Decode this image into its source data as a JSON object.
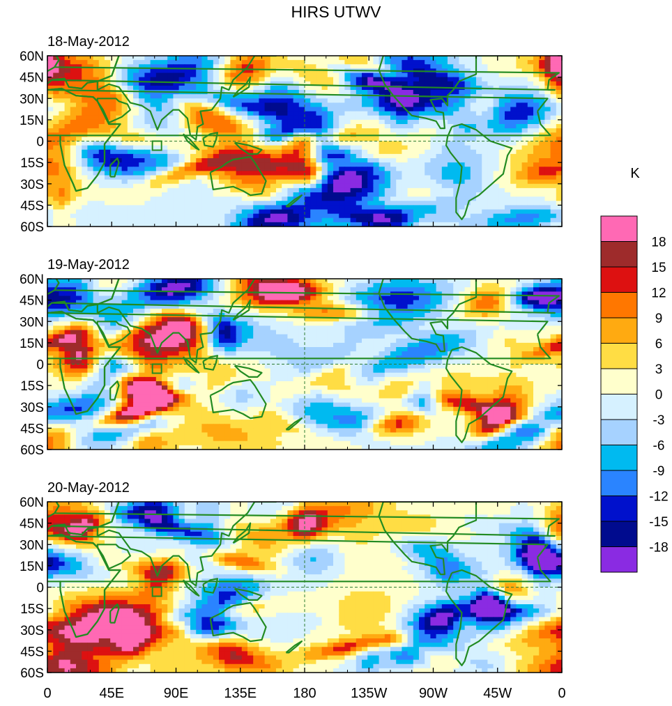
{
  "chart_data": {
    "type": "heatmap",
    "title": "HIRS UTWV",
    "units": "K",
    "panels": [
      {
        "date": "18-May-2012"
      },
      {
        "date": "19-May-2012"
      },
      {
        "date": "20-May-2012"
      }
    ],
    "x_ticks": [
      "0",
      "45E",
      "90E",
      "135E",
      "180",
      "135W",
      "90W",
      "45W",
      "0"
    ],
    "y_ticks": [
      "60N",
      "45N",
      "30N",
      "15N",
      "0",
      "15S",
      "30S",
      "45S",
      "60S"
    ],
    "xlim": [
      0,
      360
    ],
    "ylim": [
      -60,
      60
    ],
    "colorbar": {
      "labels": [
        "18",
        "15",
        "12",
        "9",
        "6",
        "3",
        "0",
        "-3",
        "-6",
        "-9",
        "-12",
        "-15",
        "-18"
      ],
      "colors": [
        "#ff69b4",
        "#9e2b2b",
        "#dd1111",
        "#ff7700",
        "#ffaa11",
        "#ffdd44",
        "#ffffcc",
        "#d6f1ff",
        "#a6d2ff",
        "#00baf0",
        "#2a84ff",
        "#0011cc",
        "#000b8e",
        "#8a2be2"
      ]
    }
  }
}
